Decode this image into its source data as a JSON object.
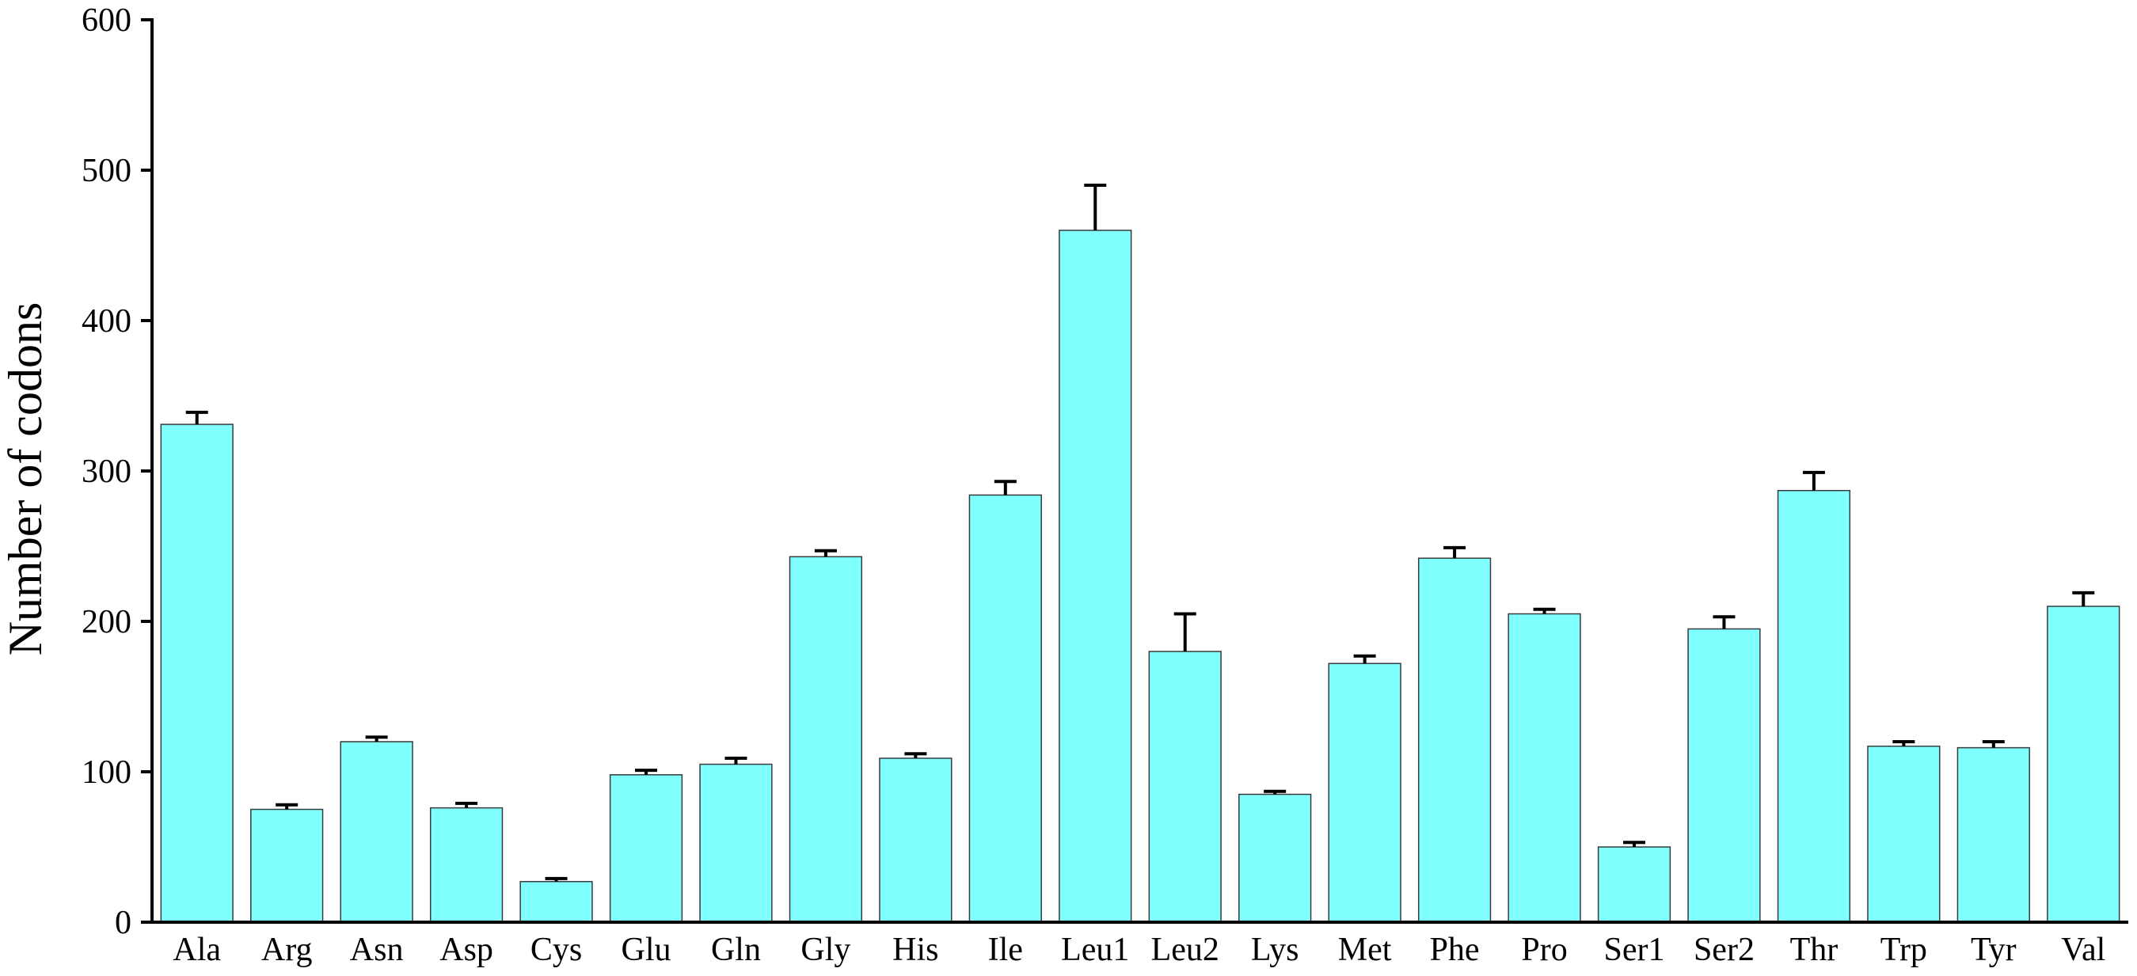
{
  "chart_data": {
    "type": "bar",
    "title": "",
    "xlabel": "",
    "ylabel": "Number of codons",
    "ylim": [
      0,
      600
    ],
    "yticks": [
      0,
      100,
      200,
      300,
      400,
      500,
      600
    ],
    "grid": false,
    "legend": "none",
    "bar_color": "#80ffff",
    "bar_edge_color": "#3a3a3a",
    "error_bar_color": "#000000",
    "categories": [
      "Ala",
      "Arg",
      "Asn",
      "Asp",
      "Cys",
      "Glu",
      "Gln",
      "Gly",
      "His",
      "Ile",
      "Leu1",
      "Leu2",
      "Lys",
      "Met",
      "Phe",
      "Pro",
      "Ser1",
      "Ser2",
      "Thr",
      "Trp",
      "Tyr",
      "Val"
    ],
    "values": [
      331,
      75,
      120,
      76,
      27,
      98,
      105,
      243,
      109,
      284,
      460,
      180,
      85,
      172,
      242,
      205,
      50,
      195,
      287,
      117,
      116,
      210
    ],
    "errors": [
      8,
      3,
      3,
      3,
      2,
      3,
      4,
      4,
      3,
      9,
      30,
      25,
      2,
      5,
      7,
      3,
      3,
      8,
      12,
      3,
      4,
      9
    ]
  }
}
